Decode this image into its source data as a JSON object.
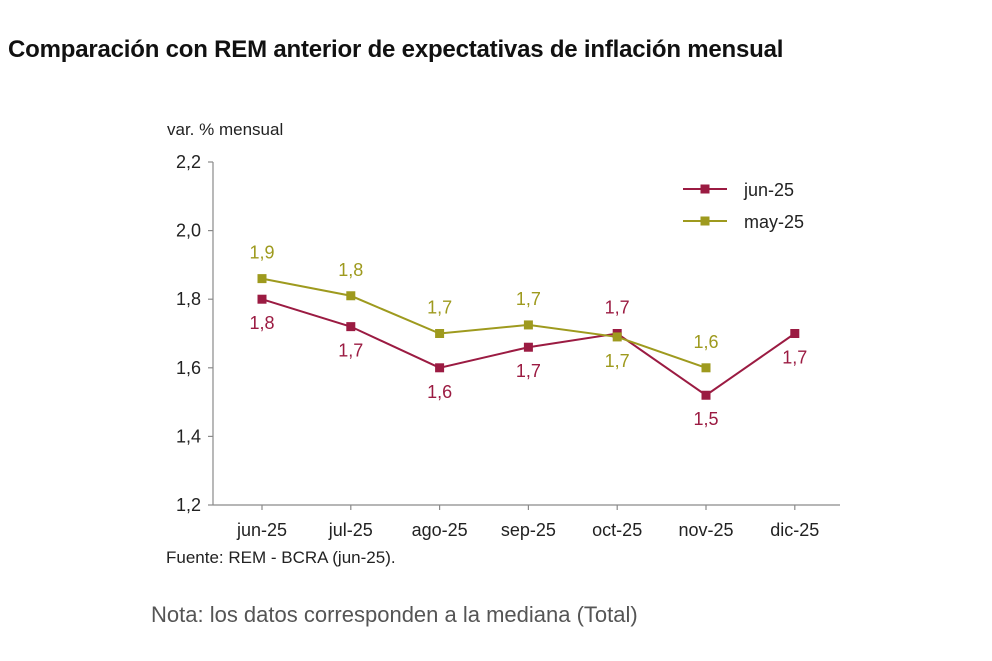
{
  "title": "Comparación con REM anterior de expectativas de inflación mensual",
  "source": "Fuente: REM - BCRA (jun-25).",
  "note": "Nota: los datos corresponden a la mediana (Total)",
  "chart_data": {
    "type": "line",
    "ylabel": "var. % mensual",
    "categories": [
      "jun-25",
      "jul-25",
      "ago-25",
      "sep-25",
      "oct-25",
      "nov-25",
      "dic-25"
    ],
    "yticks": [
      "2,2",
      "2,0",
      "1,8",
      "1,6",
      "1,4",
      "1,2"
    ],
    "ylim": [
      1.2,
      2.2
    ],
    "legend_position": "top-right",
    "grid": false,
    "series": [
      {
        "name": "jun-25",
        "color": "#9b1b42",
        "values": [
          1.8,
          1.72,
          1.6,
          1.66,
          1.7,
          1.52,
          1.7
        ],
        "labels": [
          "1,8",
          "1,7",
          "1,6",
          "1,7",
          "1,7",
          "1,5",
          "1,7"
        ]
      },
      {
        "name": "may-25",
        "color": "#9e9a1e",
        "values": [
          1.86,
          1.81,
          1.7,
          1.725,
          1.69,
          1.6,
          null
        ],
        "labels": [
          "1,9",
          "1,8",
          "1,7",
          "1,7",
          "1,7",
          "1,6",
          null
        ]
      }
    ]
  }
}
